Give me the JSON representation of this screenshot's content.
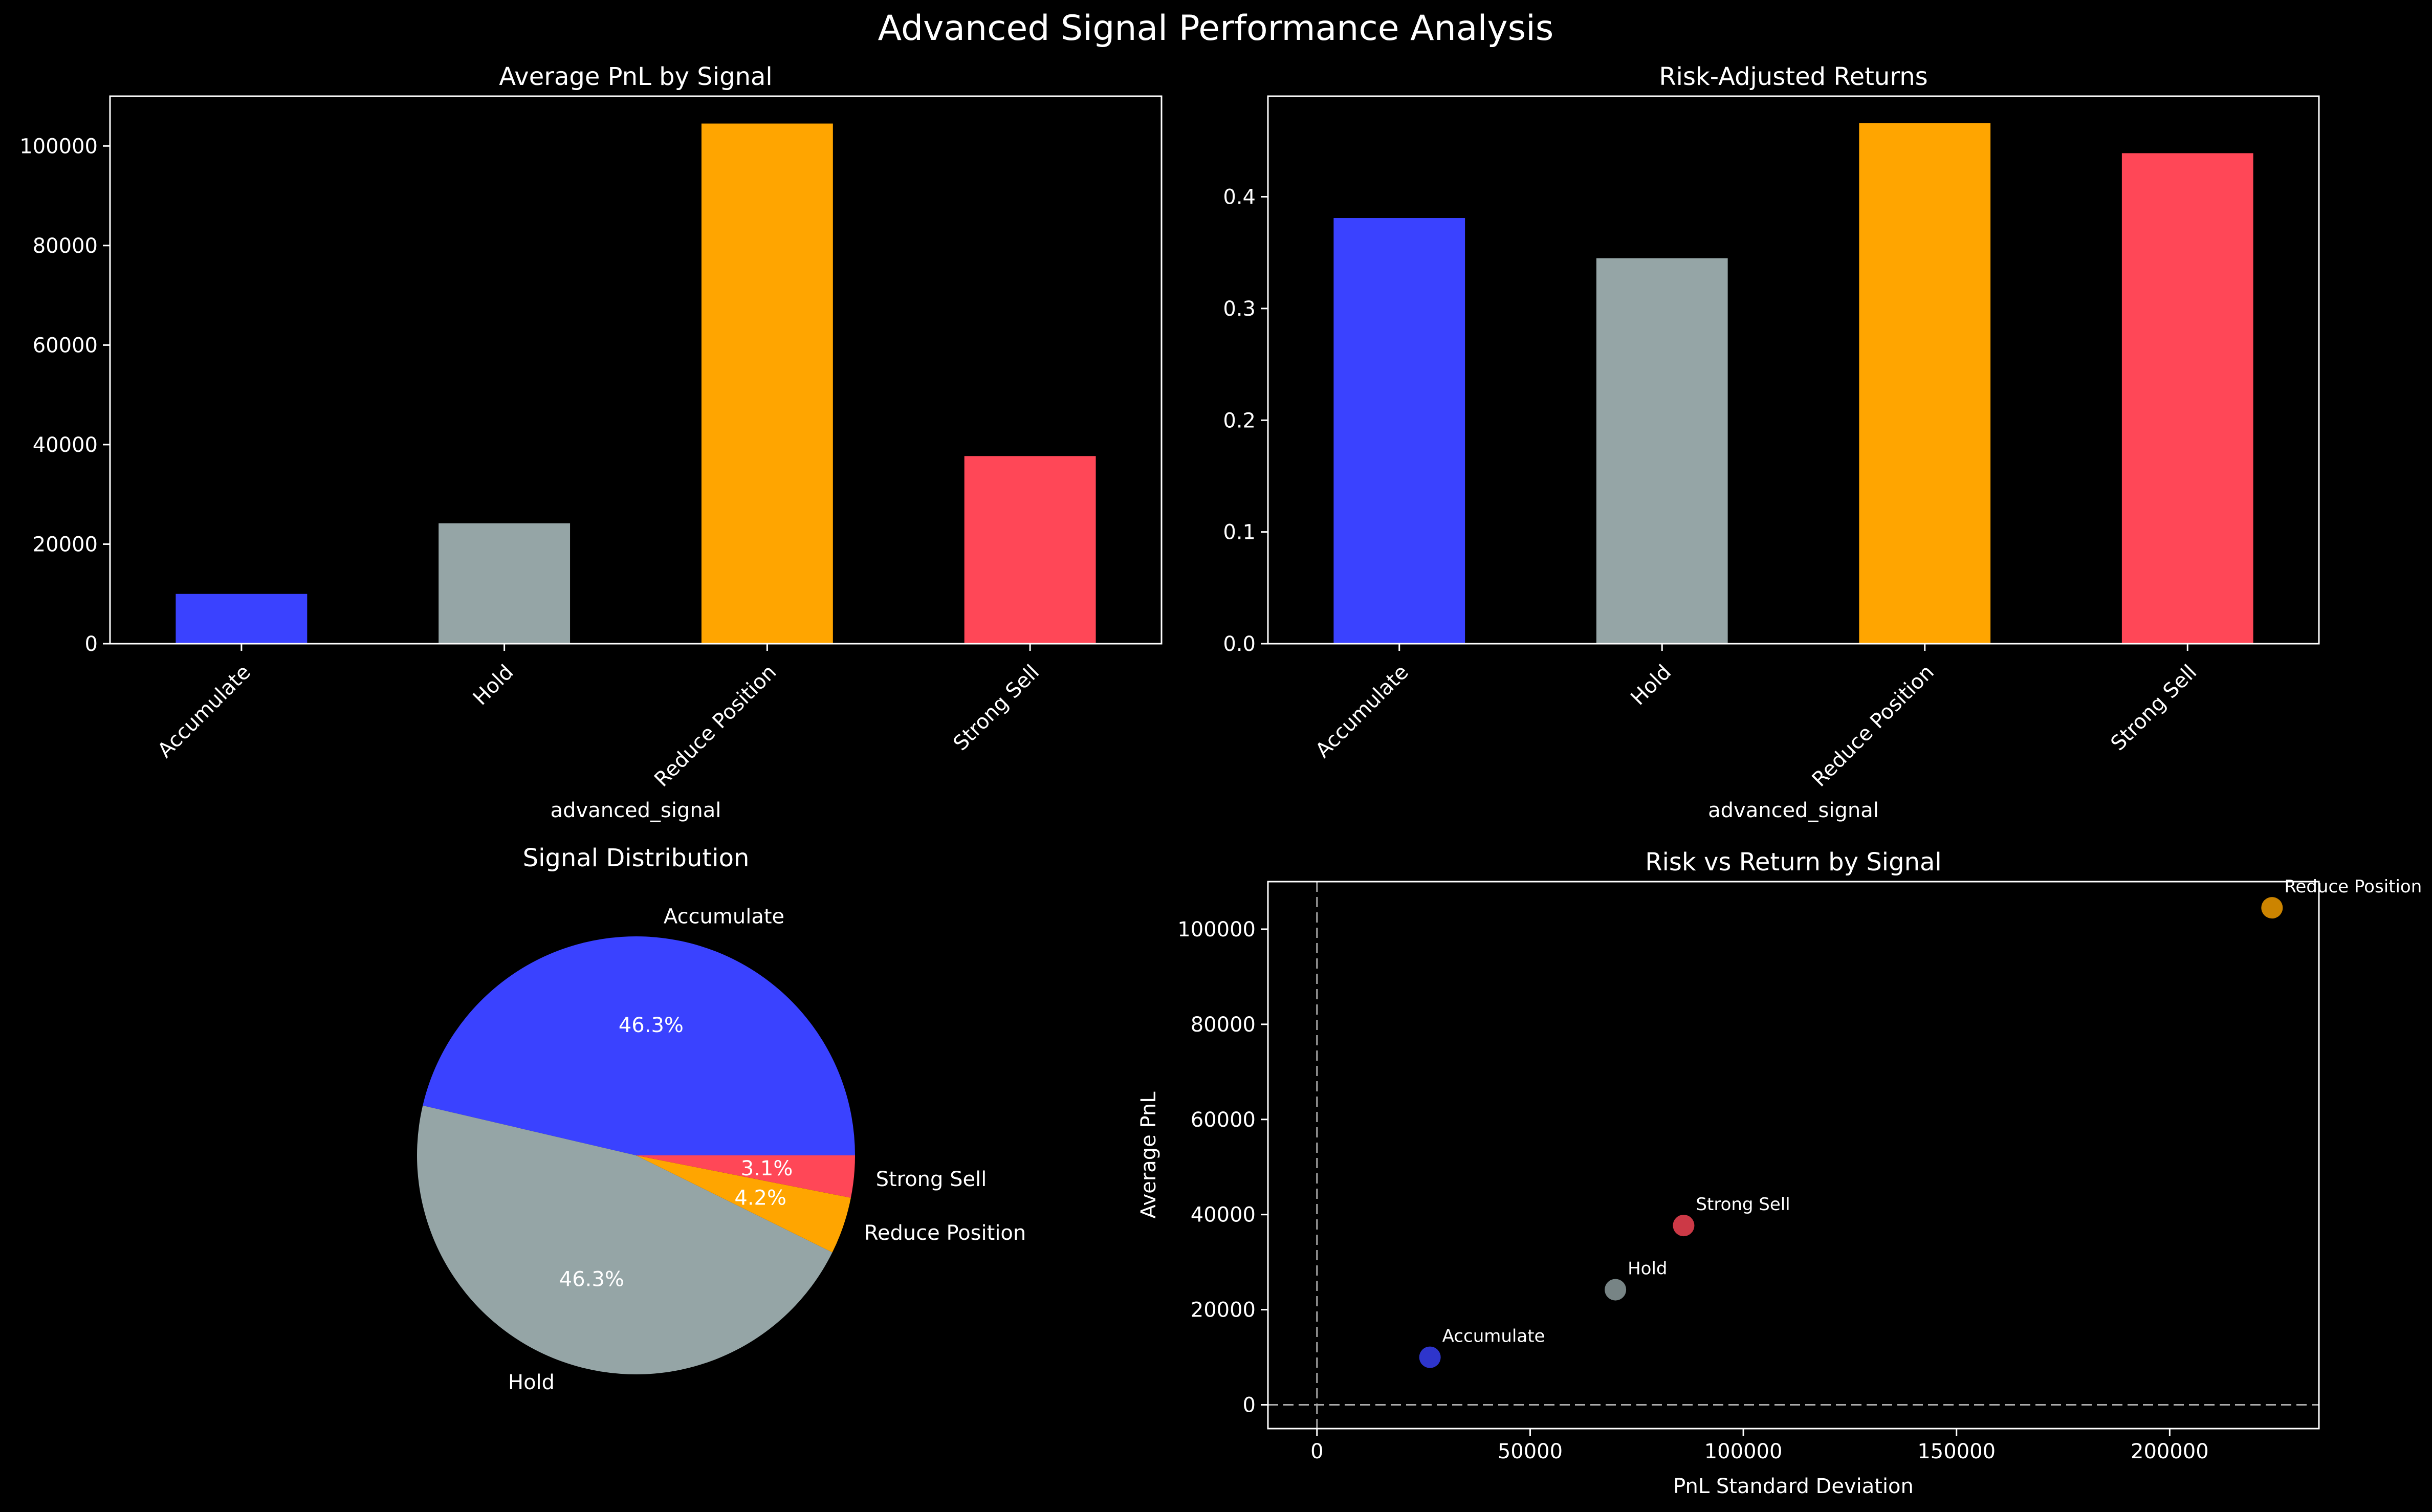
{
  "figure": {
    "suptitle": "Advanced Signal Performance Analysis",
    "background": "#000000",
    "colors": {
      "Accumulate": "#3a42ff",
      "Hold": "#95a5a6",
      "Reduce Position": "#ffa500",
      "Strong Sell": "#ff4757",
      "axis": "#ffffff",
      "zero_line": "#aaaaaa"
    }
  },
  "chart_data": [
    {
      "type": "bar",
      "title": "Average PnL by Signal",
      "xlabel": "advanced_signal",
      "ylabel": "",
      "categories": [
        "Accumulate",
        "Hold",
        "Reduce Position",
        "Strong Sell"
      ],
      "values": [
        10000,
        24200,
        104500,
        37700
      ],
      "ylim": [
        0,
        110000
      ],
      "yticks": [
        0,
        20000,
        40000,
        60000,
        80000,
        100000
      ],
      "zero_line": true
    },
    {
      "type": "bar",
      "title": "Risk-Adjusted Returns",
      "xlabel": "advanced_signal",
      "ylabel": "",
      "categories": [
        "Accumulate",
        "Hold",
        "Reduce Position",
        "Strong Sell"
      ],
      "values": [
        0.381,
        0.345,
        0.466,
        0.439
      ],
      "ylim": [
        0,
        0.49
      ],
      "yticks": [
        0.0,
        0.1,
        0.2,
        0.3,
        0.4
      ],
      "tick_labels": [
        "0.0",
        "0.1",
        "0.2",
        "0.3",
        "0.4"
      ],
      "zero_line": true
    },
    {
      "type": "pie",
      "title": "Signal Distribution",
      "labels": [
        "Accumulate",
        "Hold",
        "Reduce Position",
        "Strong Sell"
      ],
      "values": [
        46.3,
        46.3,
        4.2,
        3.1
      ],
      "pct_labels": [
        "46.3%",
        "46.3%",
        "4.2%",
        "3.1%"
      ]
    },
    {
      "type": "scatter",
      "title": "Risk vs Return by Signal",
      "xlabel": "PnL Standard Deviation",
      "ylabel": "Average PnL",
      "points": [
        {
          "label": "Accumulate",
          "x": 26500,
          "y": 10000
        },
        {
          "label": "Hold",
          "x": 70000,
          "y": 24200
        },
        {
          "label": "Strong Sell",
          "x": 86000,
          "y": 37700
        },
        {
          "label": "Reduce Position",
          "x": 224000,
          "y": 104500
        }
      ],
      "xlim": [
        -11500,
        235000
      ],
      "ylim": [
        -5000,
        110000
      ],
      "xticks": [
        0,
        50000,
        100000,
        150000,
        200000
      ],
      "yticks": [
        0,
        20000,
        40000,
        60000,
        80000,
        100000
      ],
      "reference_lines": {
        "x": 0,
        "y": 0
      }
    }
  ]
}
